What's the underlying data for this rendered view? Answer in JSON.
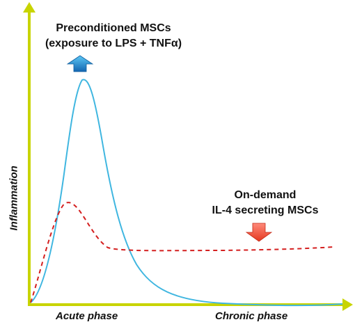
{
  "labels": {
    "preconditioned_line1": "Preconditioned MSCs",
    "preconditioned_line2": "(exposure to LPS + TNFα)",
    "ondemand_line1": "On-demand",
    "ondemand_line2": "IL-4 secreting MSCs",
    "y_axis": "Inflammation",
    "x_acute": "Acute phase",
    "x_chronic": "Chronic phase"
  },
  "colors": {
    "axis": "#c8d400",
    "solid_curve": "#3fb6e0",
    "dashed_curve": "#d41f1f",
    "up_arrow": "#1d82c8",
    "down_arrow": "#f2503f"
  },
  "icons": {
    "up_arrow": "arrow-up-icon",
    "down_arrow": "arrow-down-icon"
  }
}
